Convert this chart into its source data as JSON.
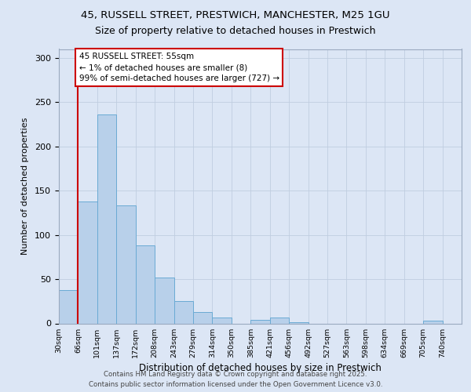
{
  "title_line1": "45, RUSSELL STREET, PRESTWICH, MANCHESTER, M25 1GU",
  "title_line2": "Size of property relative to detached houses in Prestwich",
  "xlabel": "Distribution of detached houses by size in Prestwich",
  "ylabel": "Number of detached properties",
  "bin_labels": [
    "30sqm",
    "66sqm",
    "101sqm",
    "137sqm",
    "172sqm",
    "208sqm",
    "243sqm",
    "279sqm",
    "314sqm",
    "350sqm",
    "385sqm",
    "421sqm",
    "456sqm",
    "492sqm",
    "527sqm",
    "563sqm",
    "598sqm",
    "634sqm",
    "669sqm",
    "705sqm",
    "740sqm"
  ],
  "bar_values": [
    38,
    138,
    236,
    133,
    88,
    52,
    25,
    13,
    7,
    0,
    4,
    7,
    1,
    0,
    0,
    0,
    0,
    0,
    0,
    3,
    0
  ],
  "bar_color": "#b8d0ea",
  "bar_edge_color": "#6aaad4",
  "red_line_x": 1.0,
  "annotation_title": "45 RUSSELL STREET: 55sqm",
  "annotation_line2": "← 1% of detached houses are smaller (8)",
  "annotation_line3": "99% of semi-detached houses are larger (727) →",
  "annotation_box_color": "#ffffff",
  "annotation_box_edge": "#cc0000",
  "ylim": [
    0,
    310
  ],
  "yticks": [
    0,
    50,
    100,
    150,
    200,
    250,
    300
  ],
  "footer_line1": "Contains HM Land Registry data © Crown copyright and database right 2025.",
  "footer_line2": "Contains public sector information licensed under the Open Government Licence v3.0.",
  "bg_color": "#dce6f5",
  "plot_bg_color": "#dce6f5",
  "grid_color": "#c0cde0"
}
